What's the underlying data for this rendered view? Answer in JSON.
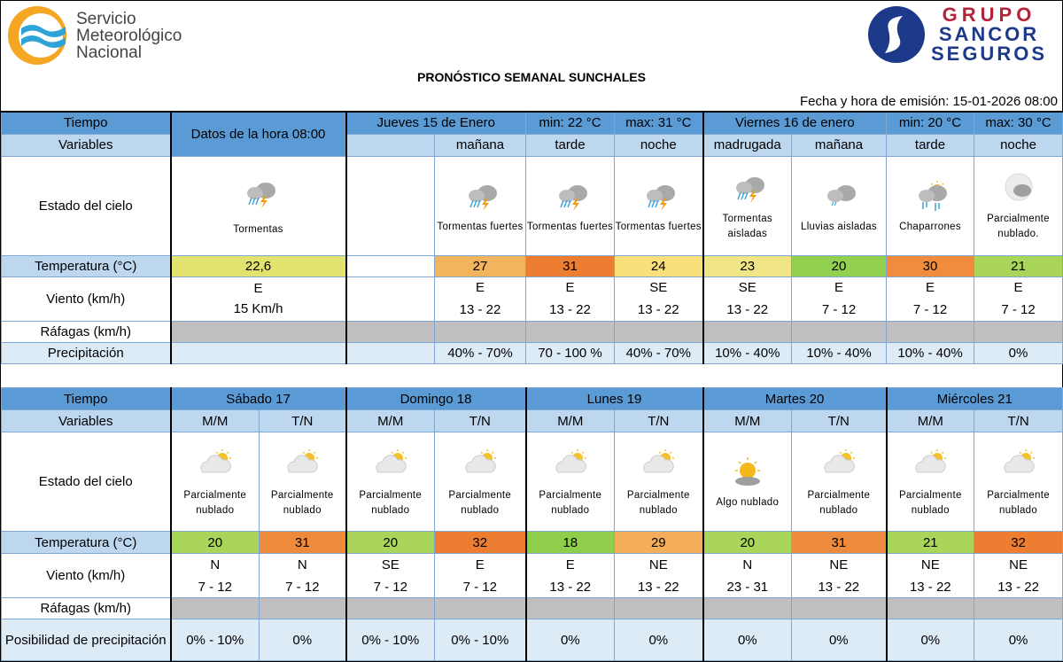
{
  "header": {
    "smn_name": [
      "Servicio",
      "Meteorológico",
      "Nacional"
    ],
    "sancor": [
      "GRUPO",
      "SANCOR",
      "SEGUROS"
    ],
    "title": "PRONÓSTICO SEMANAL SUNCHALES",
    "emission": "Fecha y hora de emisión: 15-01-2026 08:00"
  },
  "colors": {
    "header": "#5b9bd5",
    "subheader": "#bdd7ee",
    "precip_bg": "#ddebf7",
    "gusts_bg": "#bfbfbf"
  },
  "labels": {
    "tiempo": "Tiempo",
    "variables": "Variables",
    "estado": "Estado del cielo",
    "temp": "Temperatura (°C)",
    "viento": "Viento (km/h)",
    "rafagas": "Ráfagas (km/h)",
    "precip": "Precipitación",
    "posib": "Posibilidad de precipitación"
  },
  "top": {
    "current_label": "Datos de la hora 08:00",
    "current": {
      "icon": "storm",
      "sky": "Tormentas",
      "temp": "22,6",
      "temp_color": "#e2e36e",
      "wind_dir": "E",
      "wind_speed": "15 Km/h"
    },
    "days": [
      {
        "title": "Jueves 15  de Enero",
        "min": "min: 22 °C",
        "max": "max: 31 °C"
      },
      {
        "title": "Viernes 16  de enero",
        "min": "min: 20 °C",
        "max": "max: 30 °C"
      }
    ],
    "periods": [
      {
        "label": "mañana",
        "icon": "storm",
        "sky": "Tormentas fuertes",
        "temp": "27",
        "temp_color": "#f4b45e",
        "dir": "E",
        "speed": "13 - 22",
        "precip": "40% - 70%"
      },
      {
        "label": "tarde",
        "icon": "storm",
        "sky": "Tormentas fuertes",
        "temp": "31",
        "temp_color": "#ed7d31",
        "dir": "E",
        "speed": "13 - 22",
        "precip": "70 - 100 %"
      },
      {
        "label": "noche",
        "icon": "storm",
        "sky": "Tormentas fuertes",
        "temp": "24",
        "temp_color": "#f9e07a",
        "dir": "SE",
        "speed": "13 - 22",
        "precip": "40% - 70%"
      },
      {
        "label": "madrugada",
        "icon": "storm-isolated",
        "sky": "Tormentas aisladas",
        "temp": "23",
        "temp_color": "#efe584",
        "dir": "SE",
        "speed": "13 - 22",
        "precip": "10% - 40%"
      },
      {
        "label": "mañana",
        "icon": "rain",
        "sky": "Lluvias aisladas",
        "temp": "20",
        "temp_color": "#92d050",
        "dir": "E",
        "speed": "7 - 12",
        "precip": "10% - 40%"
      },
      {
        "label": "tarde",
        "icon": "showers",
        "sky": "Chaparrones",
        "temp": "30",
        "temp_color": "#f08c3c",
        "dir": "E",
        "speed": "7 - 12",
        "precip": "10% - 40%"
      },
      {
        "label": "noche",
        "icon": "partly-cloudy-night",
        "sky": "Parcialmente nublado.",
        "temp": "21",
        "temp_color": "#a9d65a",
        "dir": "E",
        "speed": "7 - 12",
        "precip": "0%"
      }
    ]
  },
  "bottom": {
    "days": [
      "Sábado 17",
      "Domingo 18",
      "Lunes 19",
      "Martes 20",
      "Miércoles 21"
    ],
    "periods": [
      {
        "label": "M/M",
        "icon": "partly-cloudy",
        "sky": "Parcialmente nublado",
        "temp": "20",
        "temp_color": "#a9d65a",
        "dir": "N",
        "speed": "7 - 12",
        "precip": "0% - 10%"
      },
      {
        "label": "T/N",
        "icon": "partly-cloudy",
        "sky": "Parcialmente nublado",
        "temp": "31",
        "temp_color": "#ed8a3c",
        "dir": "N",
        "speed": "7 - 12",
        "precip": "0%"
      },
      {
        "label": "M/M",
        "icon": "partly-cloudy",
        "sky": "Parcialmente nublado",
        "temp": "20",
        "temp_color": "#a9d65a",
        "dir": "SE",
        "speed": "7 - 12",
        "precip": "0% - 10%"
      },
      {
        "label": "T/N",
        "icon": "partly-cloudy",
        "sky": "Parcialmente nublado",
        "temp": "32",
        "temp_color": "#ed7d31",
        "dir": "E",
        "speed": "7 - 12",
        "precip": "0% - 10%"
      },
      {
        "label": "M/M",
        "icon": "partly-cloudy",
        "sky": "Parcialmente nublado",
        "temp": "18",
        "temp_color": "#8fce4a",
        "dir": "E",
        "speed": "13 - 22",
        "precip": "0%"
      },
      {
        "label": "T/N",
        "icon": "partly-cloudy",
        "sky": "Parcialmente nublado",
        "temp": "29",
        "temp_color": "#f4ad5a",
        "dir": "NE",
        "speed": "13 - 22",
        "precip": "0%"
      },
      {
        "label": "M/M",
        "icon": "sun-cloud",
        "sky": "Algo nublado",
        "temp": "20",
        "temp_color": "#a9d65a",
        "dir": "N",
        "speed": "23 - 31",
        "precip": "0%"
      },
      {
        "label": "T/N",
        "icon": "partly-cloudy",
        "sky": "Parcialmente nublado",
        "temp": "31",
        "temp_color": "#ed8a3c",
        "dir": "NE",
        "speed": "13 - 22",
        "precip": "0%"
      },
      {
        "label": "M/M",
        "icon": "partly-cloudy",
        "sky": "Parcialmente nublado",
        "temp": "21",
        "temp_color": "#a9d65a",
        "dir": "NE",
        "speed": "13 - 22",
        "precip": "0%"
      },
      {
        "label": "T/N",
        "icon": "partly-cloudy",
        "sky": "Parcialmente nublado",
        "temp": "32",
        "temp_color": "#ed7d31",
        "dir": "NE",
        "speed": "13 - 22",
        "precip": "0%"
      }
    ]
  }
}
